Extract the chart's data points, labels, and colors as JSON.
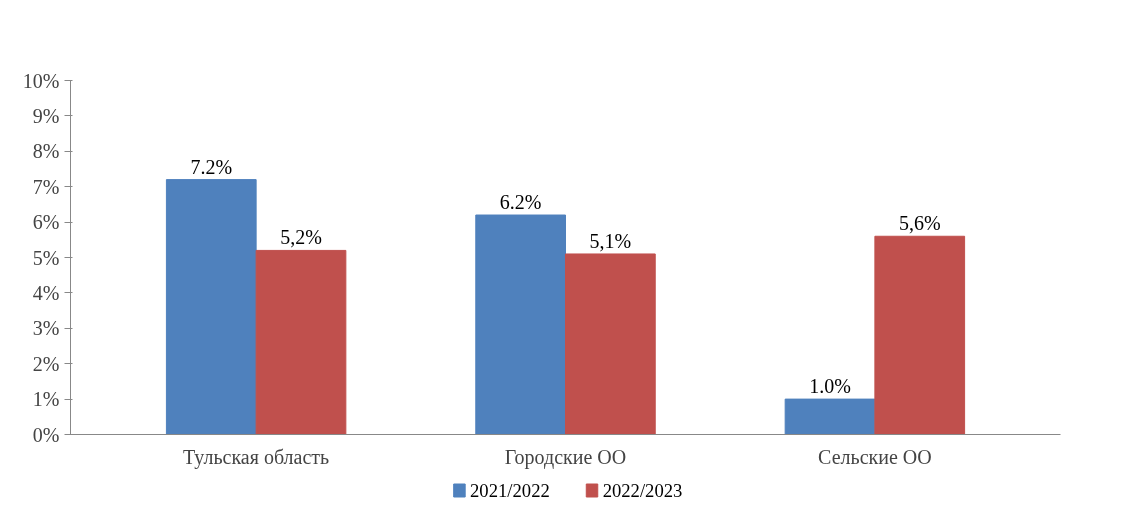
{
  "chart_data": {
    "type": "bar",
    "categories": [
      "Тульская область",
      "Городские ОО",
      "Сельские ОО"
    ],
    "series": [
      {
        "name": "2021/2022",
        "color": "#4f81bd",
        "values": [
          7.2,
          6.2,
          1.0
        ],
        "value_labels": [
          "7.2%",
          "6.2%",
          "1.0%"
        ]
      },
      {
        "name": "2022/2023",
        "color": "#c0504d",
        "values": [
          5.2,
          5.1,
          5.6
        ],
        "value_labels": [
          "5,2%",
          "5,1%",
          "5,6%"
        ]
      }
    ],
    "ylim": [
      0,
      10
    ],
    "yticks": [
      {
        "value": 0,
        "label": "0%"
      },
      {
        "value": 1,
        "label": "1%"
      },
      {
        "value": 2,
        "label": "2%"
      },
      {
        "value": 3,
        "label": "3%"
      },
      {
        "value": 4,
        "label": "4%"
      },
      {
        "value": 5,
        "label": "5%"
      },
      {
        "value": 6,
        "label": "6%"
      },
      {
        "value": 7,
        "label": "7%"
      },
      {
        "value": 8,
        "label": "8%"
      },
      {
        "value": 9,
        "label": "9%"
      },
      {
        "value": 10,
        "label": "10%"
      }
    ],
    "grid": false,
    "legend": "bottom"
  }
}
